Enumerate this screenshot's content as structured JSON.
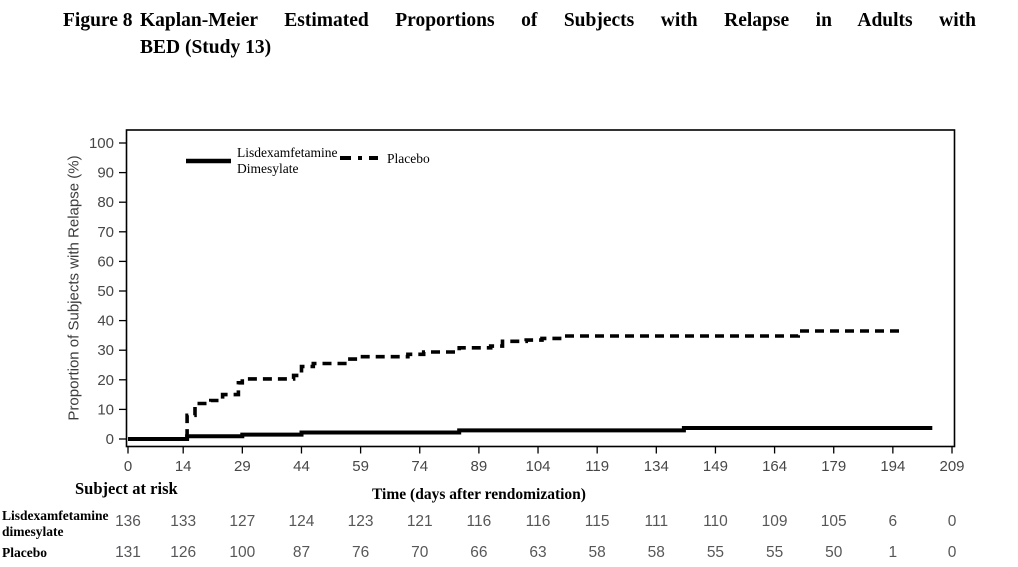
{
  "title": {
    "label": "Figure 8",
    "line1": "Kaplan-Meier Estimated Proportions of Subjects with Relapse in Adults with",
    "line2": "BED (Study 13)"
  },
  "colors": {
    "curve": "#000000",
    "frame": "#000000",
    "tick_label": "#474747",
    "risk_number": "#57575a"
  },
  "chart_data": {
    "type": "line",
    "subtype": "kaplan-meier-step",
    "xlabel": "Time (days after rendomization)",
    "ylabel": "Proportion of Subjects with Relapse (%)",
    "xlim": [
      0,
      209
    ],
    "ylim": [
      0,
      100
    ],
    "x_ticks": [
      0,
      14,
      29,
      44,
      59,
      74,
      89,
      104,
      119,
      134,
      149,
      164,
      179,
      194,
      209
    ],
    "y_ticks": [
      0,
      10,
      20,
      30,
      40,
      50,
      60,
      70,
      80,
      90,
      100
    ],
    "grid": false,
    "legend_position": "top-left-inside",
    "series": [
      {
        "name": "Lisdexamfetamine Dimesylate",
        "style": "solid",
        "steps": [
          [
            0,
            0
          ],
          [
            15,
            0.9
          ],
          [
            29,
            1.5
          ],
          [
            44,
            2.2
          ],
          [
            84,
            2.9
          ],
          [
            141,
            3.7
          ],
          [
            204,
            3.7
          ]
        ]
      },
      {
        "name": "Placebo",
        "style": "dashed",
        "steps": [
          [
            0,
            0
          ],
          [
            15,
            8
          ],
          [
            17,
            12
          ],
          [
            21,
            13
          ],
          [
            24,
            15
          ],
          [
            28,
            19
          ],
          [
            29,
            20.3
          ],
          [
            42,
            21.5
          ],
          [
            44,
            24.5
          ],
          [
            47,
            25.5
          ],
          [
            55,
            27
          ],
          [
            59,
            27.8
          ],
          [
            71,
            28.6
          ],
          [
            75,
            29.4
          ],
          [
            84,
            30.8
          ],
          [
            92,
            31.4
          ],
          [
            95,
            33
          ],
          [
            101,
            33.4
          ],
          [
            105,
            34
          ],
          [
            110,
            34.8
          ],
          [
            170,
            36.5
          ],
          [
            197,
            36.5
          ]
        ]
      }
    ],
    "legend": {
      "items": [
        {
          "lines": [
            "Lisdexamfetamine",
            "Dimesylate"
          ],
          "style": "solid"
        },
        {
          "lines": [
            "Placebo"
          ],
          "style": "dashed"
        }
      ]
    },
    "risk_table": {
      "header": "Subject at risk",
      "rows": [
        {
          "label_lines": [
            "Lisdexamfetamine",
            "dimesylate"
          ],
          "values": [
            136,
            133,
            127,
            124,
            123,
            121,
            116,
            116,
            115,
            111,
            110,
            109,
            105,
            6,
            0
          ]
        },
        {
          "label_lines": [
            "Placebo"
          ],
          "values": [
            131,
            126,
            100,
            87,
            76,
            70,
            66,
            63,
            58,
            58,
            55,
            55,
            50,
            1,
            0
          ]
        }
      ]
    }
  }
}
